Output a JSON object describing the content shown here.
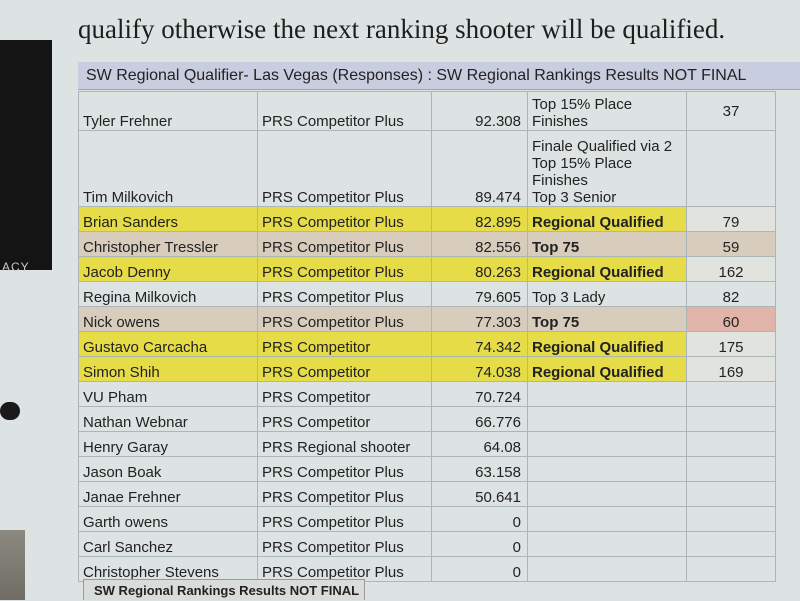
{
  "document": {
    "text_line": "qualify otherwise the next ranking shooter will be qualified."
  },
  "side": {
    "label": "ACY"
  },
  "sheet": {
    "title": "SW Regional Qualifier- Las Vegas (Responses) : SW Regional Rankings Results NOT FINAL",
    "rows": [
      {
        "name": "Tyler Frehner",
        "class": "PRS Competitor Plus",
        "score": "92.308",
        "status": "Top 15% Place\nFinishes",
        "rank": "37",
        "style": ""
      },
      {
        "name": "Tim Milkovich",
        "class": "PRS Competitor Plus",
        "score": "89.474",
        "status": "Finale Qualified via 2\nTop 15% Place\nFinishes\nTop 3 Senior",
        "rank": "",
        "style": ""
      },
      {
        "name": "Brian Sanders",
        "class": "PRS Competitor Plus",
        "score": "82.895",
        "status": "Regional Qualified",
        "rank": "79",
        "style": "yellow"
      },
      {
        "name": "Christopher Tressler",
        "class": "PRS Competitor Plus",
        "score": "82.556",
        "status": "Top 75",
        "rank": "59",
        "style": "tan"
      },
      {
        "name": "Jacob Denny",
        "class": "PRS Competitor Plus",
        "score": "80.263",
        "status": "Regional Qualified",
        "rank": "162",
        "style": "yellow"
      },
      {
        "name": "Regina Milkovich",
        "class": "PRS Competitor Plus",
        "score": "79.605",
        "status": "Top 3 Lady",
        "rank": "82",
        "style": ""
      },
      {
        "name": "Nick owens",
        "class": "PRS Competitor Plus",
        "score": "77.303",
        "status": "Top 75",
        "rank": "60",
        "style": "tan pink"
      },
      {
        "name": "Gustavo Carcacha",
        "class": "PRS Competitor",
        "score": "74.342",
        "status": "Regional Qualified",
        "rank": "175",
        "style": "yellow"
      },
      {
        "name": "Simon Shih",
        "class": "PRS Competitor",
        "score": "74.038",
        "status": "Regional Qualified",
        "rank": "169",
        "style": "yellow"
      },
      {
        "name": "VU Pham",
        "class": "PRS Competitor",
        "score": "70.724",
        "status": "",
        "rank": "",
        "style": ""
      },
      {
        "name": "Nathan Webnar",
        "class": "PRS Competitor",
        "score": "66.776",
        "status": "",
        "rank": "",
        "style": ""
      },
      {
        "name": "Henry Garay",
        "class": "PRS Regional shooter",
        "score": "64.08",
        "status": "",
        "rank": "",
        "style": ""
      },
      {
        "name": "Jason Boak",
        "class": "PRS Competitor Plus",
        "score": "63.158",
        "status": "",
        "rank": "",
        "style": ""
      },
      {
        "name": "Janae Frehner",
        "class": "PRS Competitor Plus",
        "score": "50.641",
        "status": "",
        "rank": "",
        "style": ""
      },
      {
        "name": "Garth owens",
        "class": "PRS Competitor Plus",
        "score": "0",
        "status": "",
        "rank": "",
        "style": ""
      },
      {
        "name": "Carl Sanchez",
        "class": "PRS Competitor Plus",
        "score": "0",
        "status": "",
        "rank": "",
        "style": ""
      },
      {
        "name": "Christopher Stevens",
        "class": "PRS Competitor Plus",
        "score": "0",
        "status": "",
        "rank": "",
        "style": ""
      }
    ],
    "tab_label": "SW Regional Rankings Results NOT FINAL"
  },
  "colors": {
    "qualified": "#e6dc48",
    "top75": "#d8cdbd",
    "highlight_rank": "#e0b4a8",
    "header": "#c9cde0"
  }
}
